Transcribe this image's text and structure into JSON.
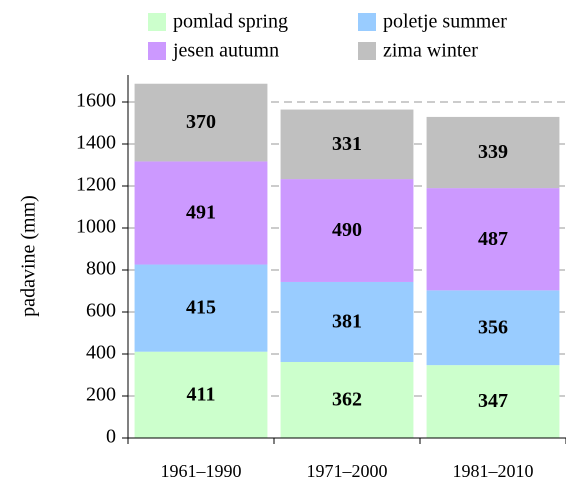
{
  "chart_data": {
    "type": "stacked-bar",
    "y_label": "padavine (mm)",
    "categories": [
      "1961–1990",
      "1971–2000",
      "1981–2010"
    ],
    "series": [
      {
        "name": "pomlad spring",
        "color": "#ccffcc",
        "values": [
          411,
          362,
          347
        ]
      },
      {
        "name": "poletje summer",
        "color": "#99ccff",
        "values": [
          415,
          381,
          356
        ]
      },
      {
        "name": "jesen autumn",
        "color": "#cc99ff",
        "values": [
          491,
          490,
          487
        ]
      },
      {
        "name": "zima winter",
        "color": "#c0c0c0",
        "values": [
          370,
          331,
          339
        ]
      }
    ],
    "ylim": [
      0,
      1700
    ],
    "yticks": [
      0,
      200,
      400,
      600,
      800,
      1000,
      1200,
      1400,
      1600
    ],
    "grid": true
  }
}
